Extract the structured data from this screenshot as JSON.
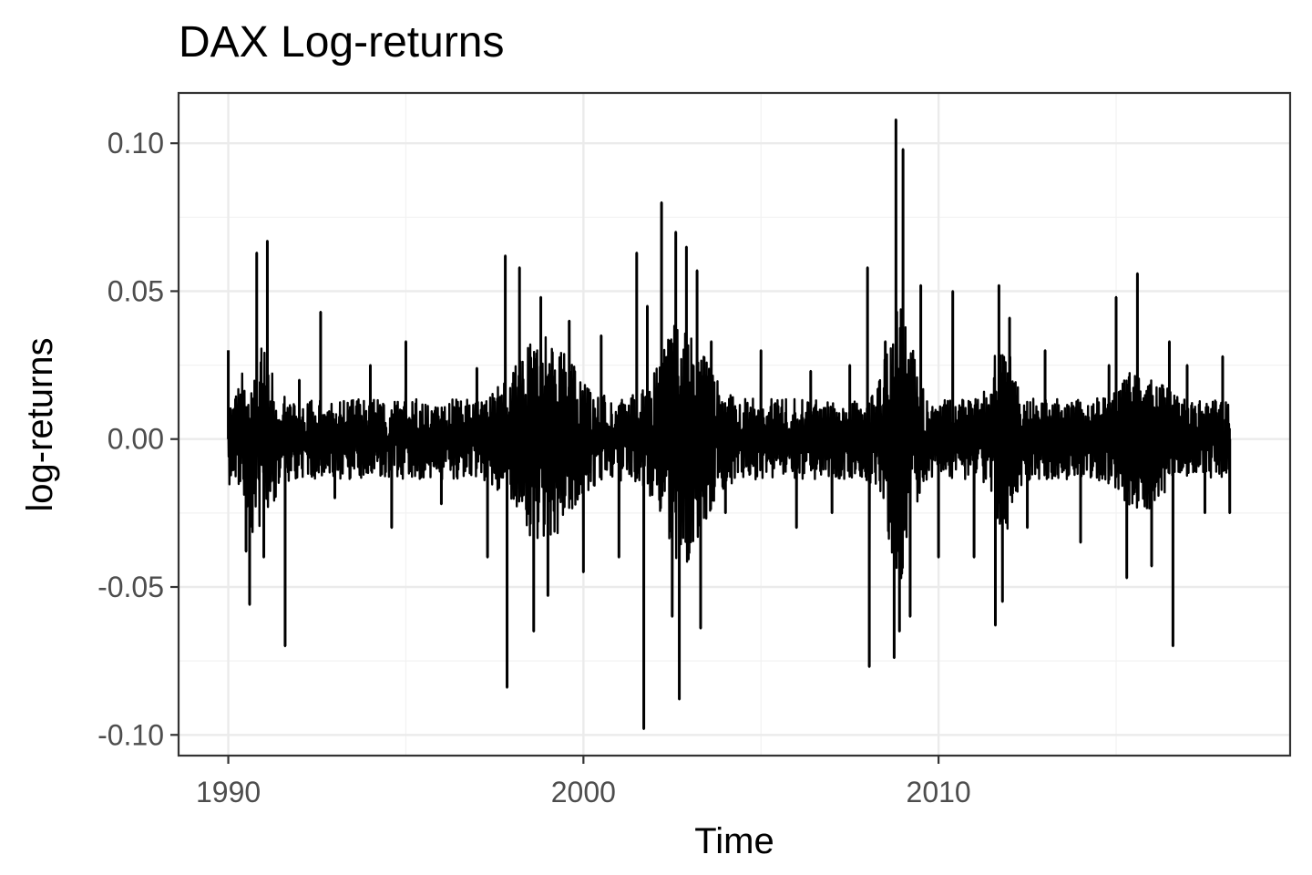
{
  "chart_data": {
    "type": "line",
    "title": "DAX Log-returns",
    "xlabel": "Time",
    "ylabel": "log-returns",
    "xlim": [
      1988.6,
      2019.9
    ],
    "ylim": [
      -0.107,
      0.117
    ],
    "x_ticks": [
      {
        "value": 1990,
        "label": "1990"
      },
      {
        "value": 2000,
        "label": "2000"
      },
      {
        "value": 2010,
        "label": "2010"
      }
    ],
    "y_ticks": [
      {
        "value": 0.1,
        "label": "0.10"
      },
      {
        "value": 0.05,
        "label": "0.05"
      },
      {
        "value": 0.0,
        "label": "0.00"
      },
      {
        "value": -0.05,
        "label": "-0.05"
      },
      {
        "value": -0.1,
        "label": "-0.10"
      }
    ],
    "grid": true,
    "line_color": "#000000",
    "series": [
      {
        "x": [
          1990.0,
          1990.5,
          1990.6,
          1990.8,
          1991.0,
          1991.1,
          1991.6,
          1992.0,
          1992.6,
          1993.0,
          1994.0,
          1994.6,
          1995.0,
          1996.0,
          1997.0,
          1997.3,
          1997.8,
          1997.85,
          1998.2,
          1998.6,
          1998.8,
          1999.0,
          1999.6,
          2000.0,
          2000.5,
          2001.0,
          2001.5,
          2001.7,
          2001.8,
          2002.2,
          2002.5,
          2002.6,
          2002.7,
          2002.9,
          2003.2,
          2003.3,
          2003.6,
          2004.0,
          2005.0,
          2006.0,
          2006.4,
          2007.0,
          2007.5,
          2008.0,
          2008.05,
          2008.5,
          2008.75,
          2008.8,
          2008.9,
          2009.0,
          2009.2,
          2009.5,
          2010.0,
          2010.4,
          2011.0,
          2011.6,
          2011.7,
          2011.8,
          2012.0,
          2012.5,
          2013.0,
          2014.0,
          2014.8,
          2015.0,
          2015.3,
          2015.6,
          2016.0,
          2016.5,
          2016.6,
          2017.0,
          2017.5,
          2018.0,
          2018.2
        ],
        "y": [
          0.03,
          -0.038,
          -0.056,
          0.063,
          -0.04,
          0.067,
          -0.07,
          0.02,
          0.043,
          -0.02,
          0.025,
          -0.03,
          0.033,
          -0.022,
          0.024,
          -0.04,
          0.062,
          -0.084,
          0.058,
          -0.065,
          0.048,
          -0.053,
          0.04,
          -0.045,
          0.035,
          -0.04,
          0.063,
          -0.098,
          0.045,
          0.08,
          -0.06,
          0.07,
          -0.088,
          0.065,
          0.057,
          -0.064,
          0.033,
          -0.025,
          0.03,
          -0.03,
          0.023,
          -0.025,
          0.025,
          0.058,
          -0.077,
          0.033,
          -0.074,
          0.108,
          -0.065,
          0.098,
          -0.06,
          0.052,
          -0.04,
          0.05,
          -0.04,
          -0.063,
          0.052,
          -0.055,
          0.041,
          -0.03,
          0.03,
          -0.035,
          0.025,
          0.048,
          -0.047,
          0.056,
          -0.043,
          0.033,
          -0.07,
          0.025,
          -0.025,
          0.028,
          -0.025
        ]
      }
    ]
  }
}
